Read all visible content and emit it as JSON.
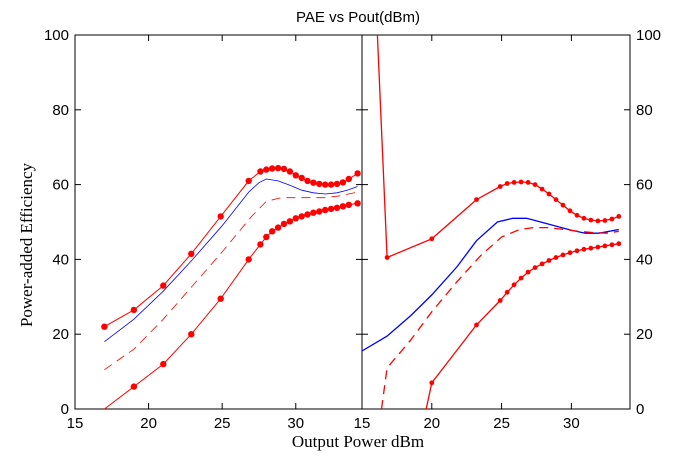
{
  "chart_data": {
    "type": "line",
    "title": "PAE vs Pout(dBm)",
    "xlabel": "Output Power dBm",
    "ylabel": "Power-added Efficiency",
    "grid": false,
    "colors": {
      "red": "#ff0000",
      "blue": "#0000ff",
      "axis": "#000000"
    },
    "panels": [
      {
        "name": "left",
        "xlim": [
          15,
          34.5
        ],
        "ylim": [
          0,
          100
        ],
        "xticks": [
          "15",
          "20",
          "25",
          "30"
        ],
        "xtick_values": [
          15,
          20,
          25,
          30
        ],
        "yticks": [
          "0",
          "20",
          "40",
          "60",
          "80",
          "100"
        ],
        "ytick_values": [
          0,
          20,
          40,
          60,
          80,
          100
        ],
        "y_axis_side": "left",
        "series": [
          {
            "color": "#ff0000",
            "style": "solid-dots",
            "width": 1,
            "x": [
              17,
              19,
              21,
              22.9,
              24.9,
              26.8,
              27.6,
              28,
              28.4,
              28.8,
              29.2,
              29.6,
              30,
              30.4,
              30.8,
              31.2,
              31.6,
              32,
              32.4,
              32.8,
              33.2,
              33.6,
              34.2
            ],
            "y": [
              22,
              26.5,
              33,
              41.5,
              51.5,
              61,
              63.5,
              64,
              64.3,
              64.4,
              64.2,
              63.5,
              62.5,
              61.8,
              61,
              60.5,
              60.2,
              60,
              60,
              60.2,
              60.6,
              61.5,
              63
            ]
          },
          {
            "color": "#0000ff",
            "style": "solid",
            "width": 0.8,
            "x": [
              17,
              19,
              21,
              23,
              25,
              26.8,
              27.5,
              28,
              28.8,
              29.6,
              30.4,
              31.2,
              32,
              32.8,
              33.6,
              34.2
            ],
            "y": [
              18,
              24,
              31.5,
              40,
              49,
              58,
              60.5,
              61.5,
              61,
              59.8,
              58.5,
              57.8,
              57.5,
              57.8,
              58.6,
              59.5
            ]
          },
          {
            "color": "#ff0000",
            "style": "dashed",
            "width": 0.8,
            "x": [
              17,
              19,
              21,
              23,
              25,
              27,
              28,
              29,
              30,
              31,
              32,
              33,
              34.2
            ],
            "y": [
              10.5,
              16,
              24,
              33,
              42,
              51.5,
              55.5,
              56.5,
              56.5,
              56.5,
              56.5,
              57,
              58
            ]
          },
          {
            "color": "#ff0000",
            "style": "solid-dots",
            "width": 1,
            "x": [
              17,
              19,
              21,
              22.9,
              24.9,
              26.8,
              27.6,
              28,
              28.4,
              28.8,
              29.2,
              29.6,
              30,
              30.4,
              30.8,
              31.2,
              31.6,
              32,
              32.4,
              32.8,
              33.2,
              33.6,
              34.2
            ],
            "y": [
              0,
              6,
              12,
              20,
              29.5,
              40,
              44,
              46,
              47.5,
              48.5,
              49.5,
              50.2,
              51,
              51.5,
              52,
              52.5,
              52.8,
              53.2,
              53.5,
              53.8,
              54.2,
              54.6,
              55
            ],
            "markers_from": 1
          }
        ]
      },
      {
        "name": "right",
        "xlim": [
          15,
          34.2
        ],
        "ylim": [
          0,
          100
        ],
        "xticks": [
          "15",
          "20",
          "25",
          "30"
        ],
        "xtick_values": [
          15,
          20,
          25,
          30
        ],
        "yticks": [
          "0",
          "20",
          "40",
          "60",
          "80",
          "100"
        ],
        "ytick_values": [
          0,
          20,
          40,
          60,
          80,
          100
        ],
        "y_axis_side": "right",
        "series": [
          {
            "color": "#ff0000",
            "style": "solid-dots",
            "width": 1.3,
            "x": [
              16.1,
              16.8,
              20,
              23.2,
              24.9,
              25.4,
              25.9,
              26.4,
              26.9,
              27.4,
              27.9,
              28.4,
              28.9,
              29.4,
              29.9,
              30.4,
              30.9,
              31.4,
              31.9,
              32.4,
              32.9,
              33.4
            ],
            "y": [
              100,
              40.5,
              45.5,
              56,
              59.5,
              60.3,
              60.6,
              60.7,
              60.6,
              60,
              58.8,
              57.5,
              56,
              54.5,
              53,
              51.8,
              51,
              50.5,
              50.3,
              50.4,
              50.8,
              51.5
            ],
            "markers_from": 1
          },
          {
            "color": "#0000ff",
            "style": "solid",
            "width": 1.3,
            "x": [
              15,
              16.8,
              18.5,
              20,
              21.8,
              23.2,
              24.7,
              25.8,
              26.8,
              27.8,
              29,
              30,
              31,
              32,
              33.4
            ],
            "y": [
              15.5,
              19.5,
              25,
              30.5,
              38,
              45,
              50,
              51,
              51,
              50,
              48.8,
              47.8,
              47,
              47,
              48
            ]
          },
          {
            "color": "#ff0000",
            "style": "dashed",
            "width": 1.3,
            "x": [
              16.4,
              16.8,
              18.5,
              20,
              21.8,
              23.5,
              25,
              26.3,
              27.3,
              28.3,
              29.5,
              30.5,
              31.5,
              32.5,
              33.4
            ],
            "y": [
              0,
              11,
              18.5,
              26,
              34,
              41,
              46,
              48,
              48.5,
              48.5,
              48,
              47.5,
              47.2,
              47,
              47.5
            ]
          },
          {
            "color": "#ff0000",
            "style": "solid-dots",
            "width": 1.3,
            "x": [
              19.6,
              20,
              23.2,
              24.9,
              25.4,
              25.9,
              26.4,
              26.9,
              27.4,
              27.9,
              28.4,
              28.9,
              29.4,
              29.9,
              30.4,
              30.9,
              31.4,
              31.9,
              32.4,
              32.9,
              33.4
            ],
            "y": [
              0,
              7,
              22.5,
              29,
              31.2,
              33.2,
              35,
              36.6,
              37.8,
              38.8,
              39.7,
              40.5,
              41.2,
              41.8,
              42.3,
              42.7,
              43,
              43.3,
              43.6,
              43.9,
              44.2
            ],
            "markers_from": 1
          }
        ]
      }
    ]
  }
}
